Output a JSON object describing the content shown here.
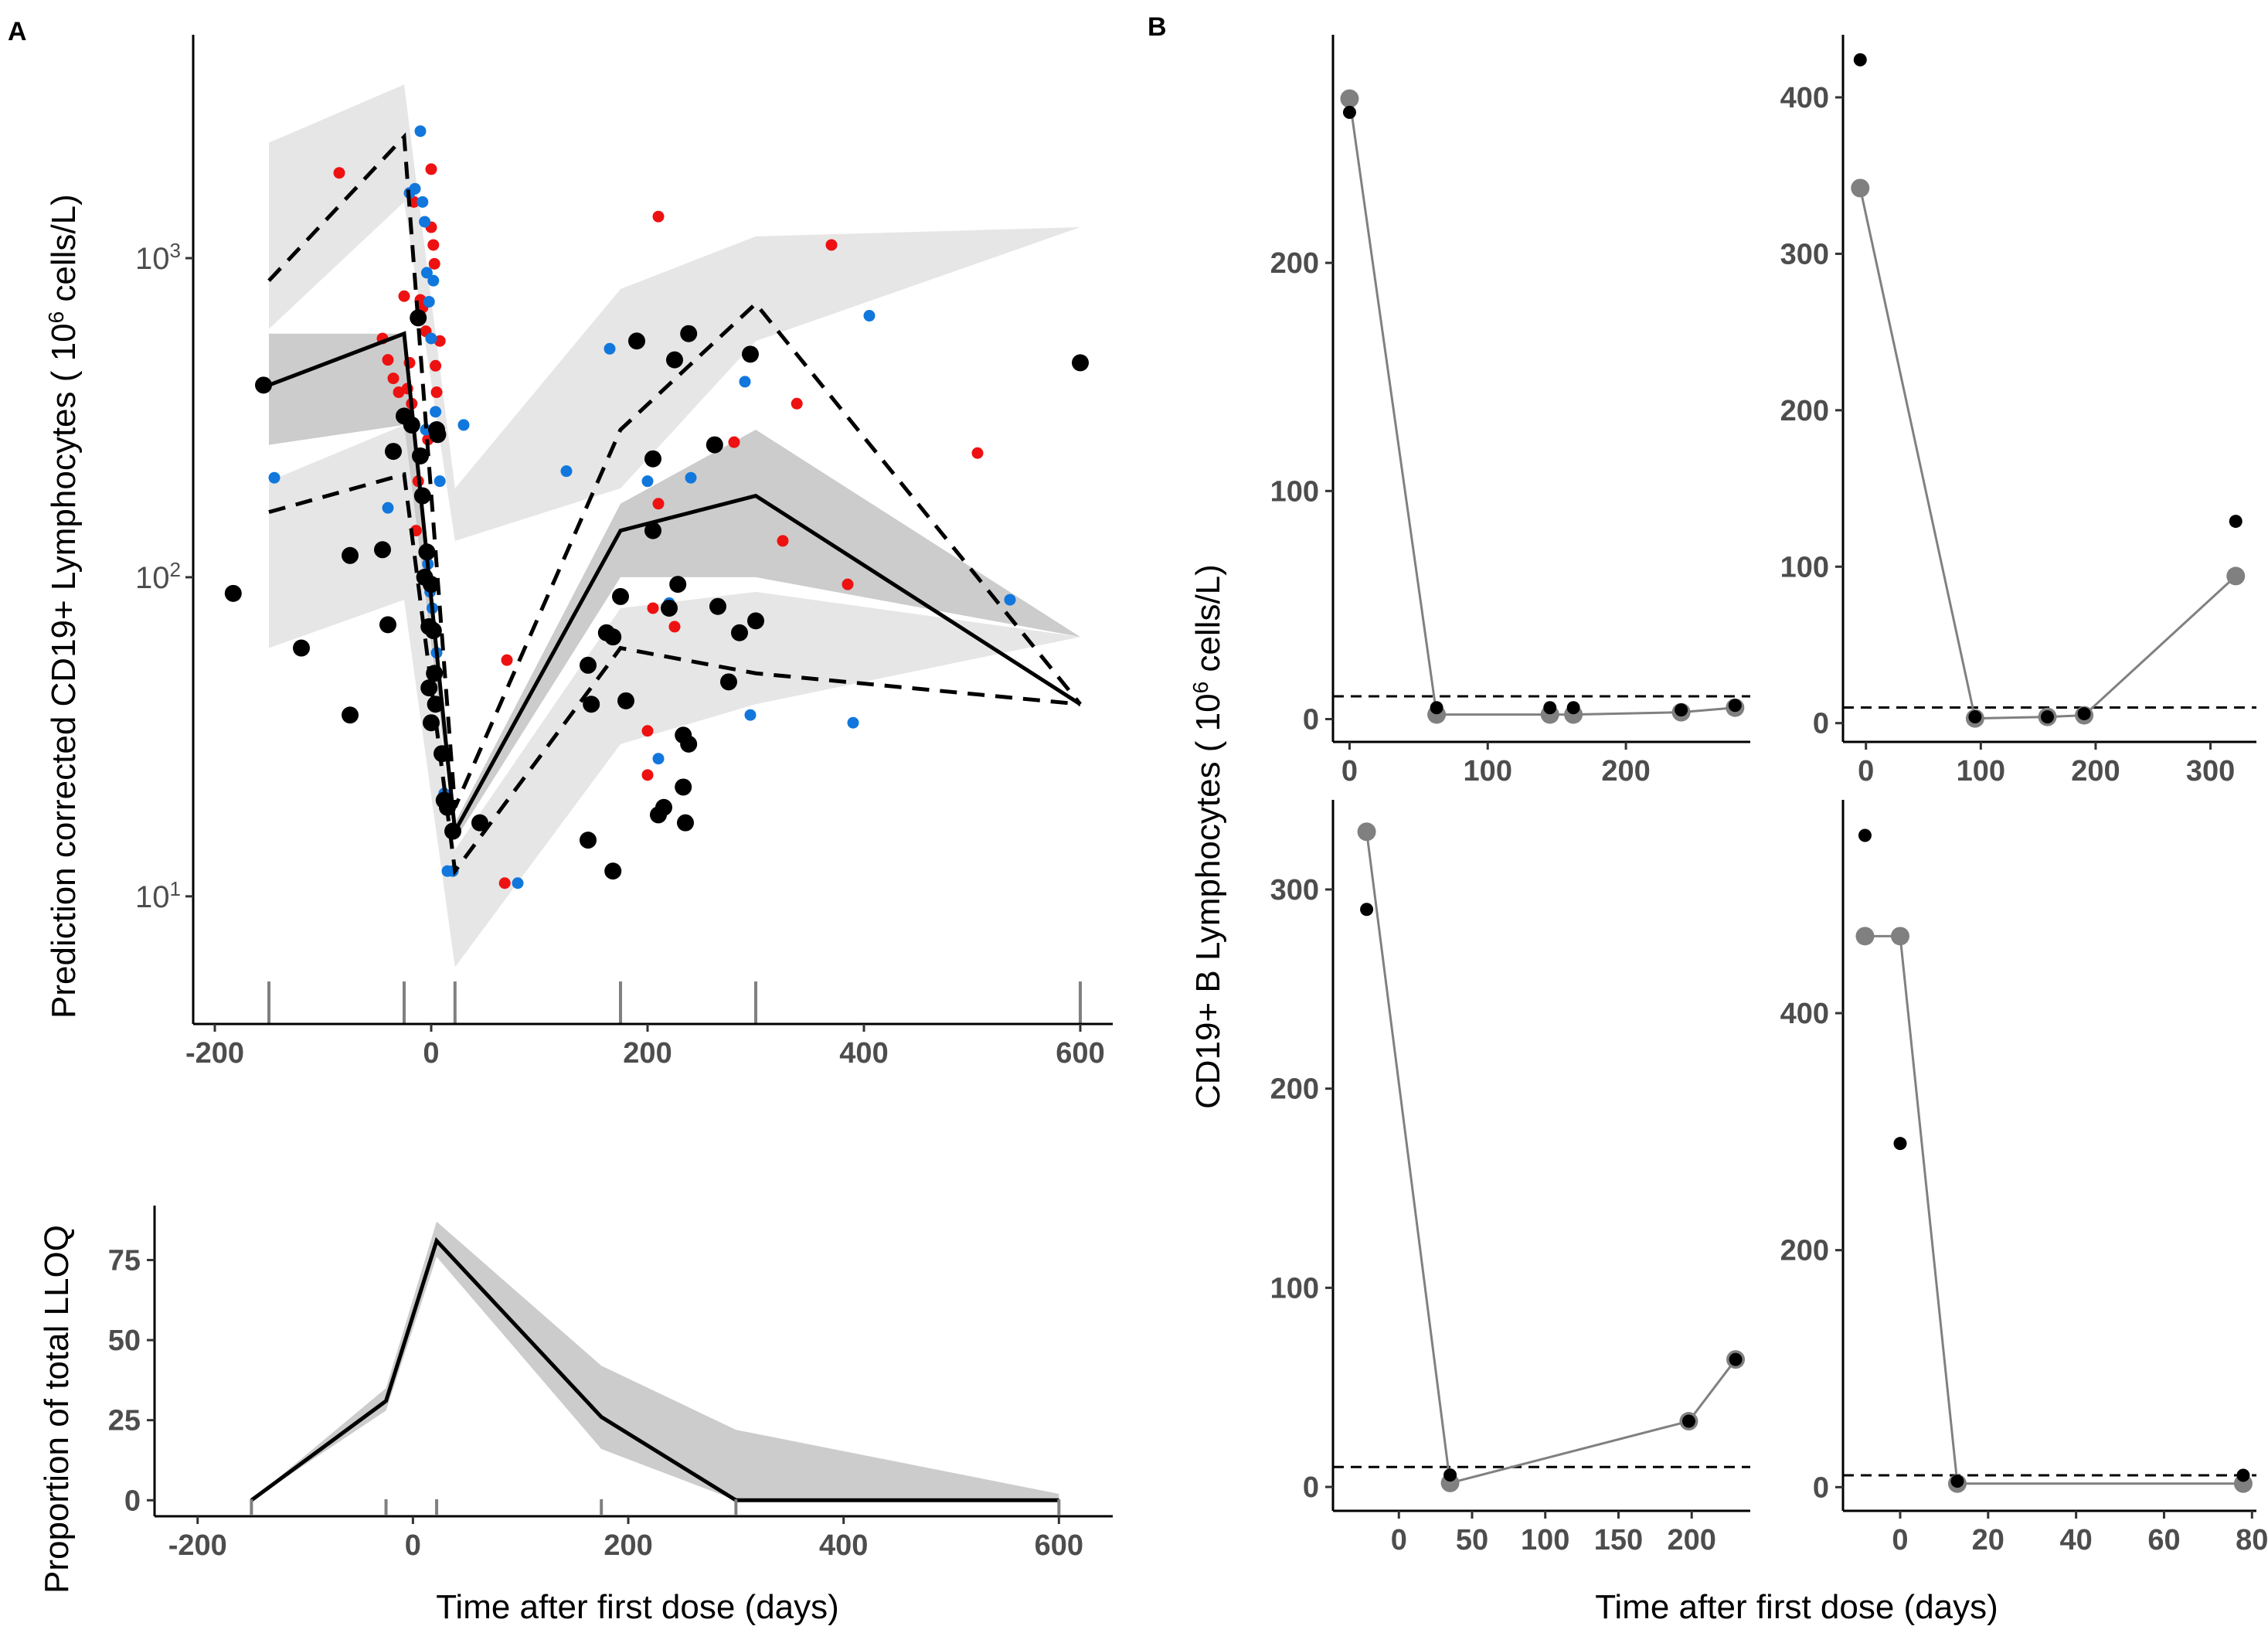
{
  "panel_labels": {
    "a": "A",
    "b": "B"
  },
  "colors": {
    "band_light": "#e6e6e6",
    "band_dark": "#cccccc",
    "obs_black": "#000000",
    "obs_red": "#ee1111",
    "obs_blue": "#1177dd",
    "pred_grey": "#808080",
    "tick_grey": "#4d4d4d"
  },
  "chart_data": [
    {
      "id": "A_vpc",
      "type": "scatter",
      "title": "",
      "xlabel": "",
      "ylabel_prefix": "Prediction corrected CD19+ Lymphocytes ( 10",
      "ylabel_sup": "6",
      "ylabel_suffix": " cells/L)",
      "xlim": [
        -220,
        630
      ],
      "ylim_log": [
        0.6,
        3.7
      ],
      "xticks": [
        -200,
        0,
        200,
        400,
        600
      ],
      "xtick_labels": [
        "-200",
        "0",
        "200",
        "400",
        "600"
      ],
      "yticks": [
        10,
        100,
        1000
      ],
      "ytick_base": "10",
      "ytick_exps": [
        "1",
        "2",
        "3"
      ],
      "bin_marks": [
        -150,
        -25,
        22,
        175,
        300,
        600
      ],
      "bin_x": [
        -150,
        -25,
        22,
        175,
        300,
        600
      ],
      "median_obs": [
        400,
        580,
        16,
        140,
        180,
        40
      ],
      "p5_obs": [
        160,
        210,
        12,
        60,
        50,
        40
      ],
      "p95_obs": [
        850,
        2400,
        19,
        290,
        720,
        40
      ],
      "median_ci_low": [
        260,
        300,
        15,
        100,
        100,
        65
      ],
      "median_ci_high": [
        580,
        580,
        17,
        170,
        290,
        65
      ],
      "p5_ci_low": [
        60,
        85,
        6,
        30,
        40,
        65
      ],
      "p5_ci_high": [
        200,
        300,
        14,
        80,
        90,
        65
      ],
      "p95_ci_low": [
        600,
        1500,
        130,
        190,
        550,
        1250
      ],
      "p95_ci_high": [
        2300,
        3500,
        190,
        800,
        1170,
        1250
      ],
      "points_black": [
        [
          -183,
          89
        ],
        [
          -155,
          400
        ],
        [
          -120,
          60
        ],
        [
          -75,
          37
        ],
        [
          -75,
          117
        ],
        [
          -45,
          122
        ],
        [
          -40,
          71
        ],
        [
          -35,
          248
        ],
        [
          -25,
          320
        ],
        [
          -18,
          300
        ],
        [
          -12,
          650
        ],
        [
          -10,
          240
        ],
        [
          -8,
          180
        ],
        [
          -6,
          100
        ],
        [
          -4,
          120
        ],
        [
          -2,
          70
        ],
        [
          0,
          95
        ],
        [
          -2,
          45
        ],
        [
          0,
          35
        ],
        [
          2,
          68
        ],
        [
          3,
          50
        ],
        [
          4,
          40
        ],
        [
          5,
          290
        ],
        [
          6,
          280
        ],
        [
          10,
          28
        ],
        [
          12,
          20
        ],
        [
          15,
          19
        ],
        [
          20,
          16
        ],
        [
          45,
          17
        ],
        [
          145,
          15
        ],
        [
          145,
          53
        ],
        [
          148,
          40
        ],
        [
          162,
          67
        ],
        [
          168,
          65
        ],
        [
          168,
          12
        ],
        [
          175,
          87
        ],
        [
          180,
          41
        ],
        [
          190,
          550
        ],
        [
          205,
          140
        ],
        [
          205,
          235
        ],
        [
          210,
          18
        ],
        [
          215,
          19
        ],
        [
          220,
          80
        ],
        [
          225,
          480
        ],
        [
          228,
          95
        ],
        [
          233,
          32
        ],
        [
          233,
          22
        ],
        [
          235,
          17
        ],
        [
          238,
          580
        ],
        [
          238,
          30
        ],
        [
          262,
          260
        ],
        [
          265,
          81
        ],
        [
          275,
          47
        ],
        [
          285,
          67
        ],
        [
          295,
          500
        ],
        [
          300,
          73
        ],
        [
          600,
          470
        ]
      ],
      "points_red": [
        [
          -85,
          1850
        ],
        [
          -45,
          560
        ],
        [
          -40,
          480
        ],
        [
          -35,
          420
        ],
        [
          -30,
          380
        ],
        [
          -25,
          760
        ],
        [
          -22,
          390
        ],
        [
          -20,
          470
        ],
        [
          -18,
          350
        ],
        [
          -16,
          1500
        ],
        [
          -14,
          140
        ],
        [
          -12,
          200
        ],
        [
          -10,
          740
        ],
        [
          -8,
          700
        ],
        [
          -5,
          590
        ],
        [
          -3,
          270
        ],
        [
          0,
          1900
        ],
        [
          0,
          1250
        ],
        [
          2,
          1100
        ],
        [
          3,
          960
        ],
        [
          4,
          460
        ],
        [
          5,
          380
        ],
        [
          8,
          550
        ],
        [
          70,
          55
        ],
        [
          68,
          11
        ],
        [
          210,
          1350
        ],
        [
          210,
          170
        ],
        [
          205,
          80
        ],
        [
          225,
          70
        ],
        [
          200,
          33
        ],
        [
          200,
          24
        ],
        [
          280,
          265
        ],
        [
          325,
          130
        ],
        [
          338,
          350
        ],
        [
          370,
          1100
        ],
        [
          385,
          95
        ],
        [
          505,
          245
        ]
      ],
      "points_blue": [
        [
          -145,
          205
        ],
        [
          -40,
          165
        ],
        [
          -20,
          1600
        ],
        [
          -15,
          1650
        ],
        [
          -10,
          2500
        ],
        [
          -8,
          1500
        ],
        [
          -6,
          1300
        ],
        [
          -4,
          900
        ],
        [
          -2,
          730
        ],
        [
          0,
          560
        ],
        [
          2,
          850
        ],
        [
          4,
          330
        ],
        [
          6,
          275
        ],
        [
          8,
          200
        ],
        [
          -5,
          290
        ],
        [
          -3,
          110
        ],
        [
          -1,
          90
        ],
        [
          1,
          80
        ],
        [
          3,
          50
        ],
        [
          5,
          58
        ],
        [
          10,
          20
        ],
        [
          12,
          21
        ],
        [
          15,
          12
        ],
        [
          20,
          12
        ],
        [
          30,
          300
        ],
        [
          80,
          11
        ],
        [
          125,
          215
        ],
        [
          165,
          520
        ],
        [
          200,
          200
        ],
        [
          210,
          27
        ],
        [
          220,
          83
        ],
        [
          240,
          205
        ],
        [
          290,
          410
        ],
        [
          295,
          37
        ],
        [
          390,
          35
        ],
        [
          405,
          660
        ],
        [
          535,
          85
        ]
      ]
    },
    {
      "id": "A_lloq",
      "type": "line",
      "xlabel": "Time after first dose (days)",
      "ylabel": "Proportion of total LLOQ",
      "xlim": [
        -240,
        650
      ],
      "ylim": [
        -5,
        92
      ],
      "xticks": [
        -200,
        0,
        200,
        400,
        600
      ],
      "xtick_labels": [
        "-200",
        "0",
        "200",
        "400",
        "600"
      ],
      "yticks": [
        0,
        25,
        50,
        75
      ],
      "ytick_labels": [
        "0",
        "25",
        "50",
        "75"
      ],
      "bin_marks": [
        -150,
        -25,
        22,
        175,
        300,
        600
      ],
      "x": [
        -150,
        -25,
        22,
        175,
        300,
        600
      ],
      "values": [
        0,
        31,
        81,
        26,
        0,
        0
      ],
      "ci_low": [
        0,
        28,
        76,
        16,
        0,
        0
      ],
      "ci_high": [
        0,
        35,
        87,
        42,
        22,
        2
      ]
    },
    {
      "id": "B1",
      "type": "line",
      "xlim": [
        -12,
        290
      ],
      "ylim": [
        -10,
        300
      ],
      "xticks": [
        0,
        100,
        200
      ],
      "xtick_labels": [
        "0",
        "100",
        "200"
      ],
      "yticks": [
        0,
        100,
        200
      ],
      "ytick_labels": [
        "0",
        "100",
        "200"
      ],
      "lloq": 10,
      "pred_x": [
        0,
        63,
        145,
        162,
        240,
        279
      ],
      "pred_y": [
        272,
        2,
        2,
        2,
        3,
        5
      ],
      "obs_x": [
        0,
        63,
        145,
        162,
        240,
        279
      ],
      "obs_y": [
        266,
        5,
        5,
        5,
        4,
        6
      ]
    },
    {
      "id": "B2",
      "type": "line",
      "xlim": [
        -20,
        340
      ],
      "ylim": [
        -12,
        440
      ],
      "xticks": [
        0,
        100,
        200,
        300
      ],
      "xtick_labels": [
        "0",
        "100",
        "200",
        "300"
      ],
      "yticks": [
        0,
        100,
        200,
        300,
        400
      ],
      "ytick_labels": [
        "0",
        "100",
        "200",
        "300",
        "400"
      ],
      "lloq": 10,
      "pred_x": [
        -5,
        95,
        158,
        190,
        322
      ],
      "pred_y": [
        342,
        3,
        4,
        5,
        94
      ],
      "obs_x": [
        -5,
        95,
        158,
        190,
        322
      ],
      "obs_y": [
        424,
        4,
        4,
        6,
        129
      ]
    },
    {
      "id": "B3",
      "type": "line",
      "xlim": [
        -45,
        240
      ],
      "ylim": [
        -12,
        345
      ],
      "xticks": [
        0,
        50,
        100,
        150,
        200
      ],
      "xtick_labels": [
        "0",
        "50",
        "100",
        "150",
        "200"
      ],
      "yticks": [
        0,
        100,
        200,
        300
      ],
      "ytick_labels": [
        "0",
        "100",
        "200",
        "300"
      ],
      "lloq": 10,
      "pred_x": [
        -22,
        35,
        198,
        230
      ],
      "pred_y": [
        329,
        2,
        33,
        64
      ],
      "obs_x": [
        -22,
        35,
        198,
        230
      ],
      "obs_y": [
        290,
        6,
        33,
        64
      ]
    },
    {
      "id": "B4",
      "type": "line",
      "xlim": [
        -13,
        81
      ],
      "ylim": [
        -20,
        580
      ],
      "xticks": [
        0,
        20,
        40,
        60,
        80
      ],
      "xtick_labels": [
        "0",
        "20",
        "40",
        "60",
        "80"
      ],
      "yticks": [
        0,
        200,
        400
      ],
      "ytick_labels": [
        "0",
        "200",
        "400"
      ],
      "lloq": 10,
      "pred_x": [
        -8,
        0,
        13,
        78
      ],
      "pred_y": [
        465,
        465,
        3,
        3
      ],
      "obs_x": [
        -8,
        0,
        13,
        78
      ],
      "obs_y": [
        550,
        290,
        5,
        10
      ]
    }
  ],
  "B_ylabel_prefix": "CD19+ B Lymphocytes ( 10",
  "B_ylabel_sup": "6",
  "B_ylabel_suffix": " cells/L)",
  "B_xlabel": "Time after first dose (days)"
}
